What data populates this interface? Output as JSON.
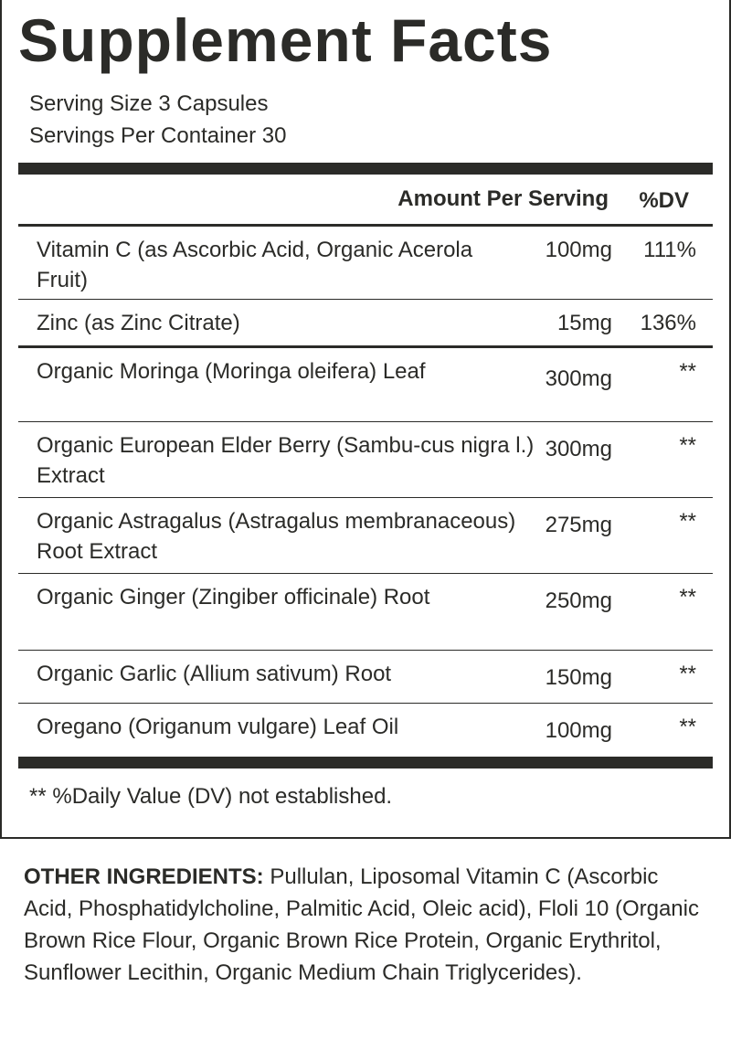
{
  "title": "Supplement Facts",
  "serving_size": "Serving Size 3 Capsules",
  "servings_per_container": "Servings Per Container 30",
  "header": {
    "amount": "Amount Per Serving",
    "dv": "%DV"
  },
  "rows": [
    {
      "name": "Vitamin C (as Ascorbic Acid, Organic Acerola Fruit)",
      "amount": "100mg",
      "dv": "111%"
    },
    {
      "name": "Zinc (as Zinc Citrate)",
      "amount": "15mg",
      "dv": "136%"
    },
    {
      "name": "Organic Moringa (Moringa oleifera) Leaf",
      "amount": "300mg",
      "dv": "**"
    },
    {
      "name": "Organic European Elder Berry (Sambu-cus nigra l.) Extract",
      "amount": "300mg",
      "dv": "**"
    },
    {
      "name": "Organic Astragalus (Astragalus membranaceous) Root Extract",
      "amount": "275mg",
      "dv": "**"
    },
    {
      "name": "Organic Ginger (Zingiber officinale) Root",
      "amount": "250mg",
      "dv": "**"
    },
    {
      "name": "Organic Garlic (Allium sativum) Root",
      "amount": "150mg",
      "dv": "**"
    },
    {
      "name": "Oregano (Origanum vulgare) Leaf Oil",
      "amount": "100mg",
      "dv": "**"
    }
  ],
  "footnote": "** %Daily Value (DV) not established.",
  "other_ingredients": {
    "label": "OTHER INGREDIENTS:",
    "text": " Pullulan, Liposomal Vitamin C (Ascorbic Acid, Phosphatidylcholine, Palmitic Acid, Oleic acid), Floli 10 (Organic Brown Rice Flour, Organic Brown Rice Protein, Organic Erythritol, Sunflower Lecithin, Organic Medium Chain Triglycerides)."
  }
}
